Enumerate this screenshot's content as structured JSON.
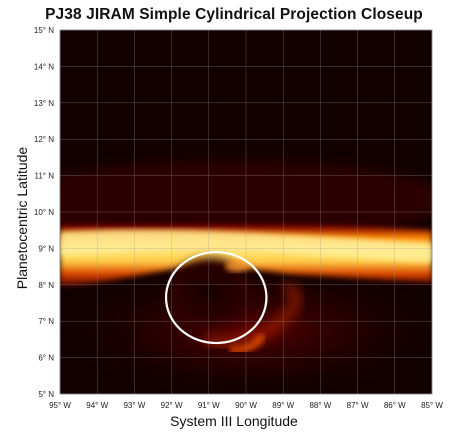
{
  "chart_data": {
    "type": "heatmap",
    "title": "PJ38 JIRAM Simple Cylindrical Projection Closeup",
    "xlabel": "System III Longitude",
    "ylabel": "Planetocentric Latitude",
    "xlim": [
      95,
      85
    ],
    "ylim": [
      5,
      15
    ],
    "x_ticks": [
      "95° W",
      "94° W",
      "93° W",
      "92° W",
      "91° W",
      "90° W",
      "89° W",
      "88° W",
      "87° W",
      "86° W",
      "85° W"
    ],
    "y_ticks": [
      "5° N",
      "6° N",
      "7° N",
      "8° N",
      "9° N",
      "10° N",
      "11° N",
      "12° N",
      "13° N",
      "14° N",
      "15° N"
    ],
    "grid": true,
    "colormap": [
      "#000000",
      "#3a0000",
      "#8b0000",
      "#e03000",
      "#ff9a00",
      "#ffe066",
      "#ffffd0"
    ],
    "annotation": {
      "shape": "circle",
      "color": "#ffffff",
      "center": {
        "lon": 90.8,
        "lat": 7.65
      },
      "radius_deg_lon": 1.35,
      "radius_deg_lat": 1.25
    }
  }
}
